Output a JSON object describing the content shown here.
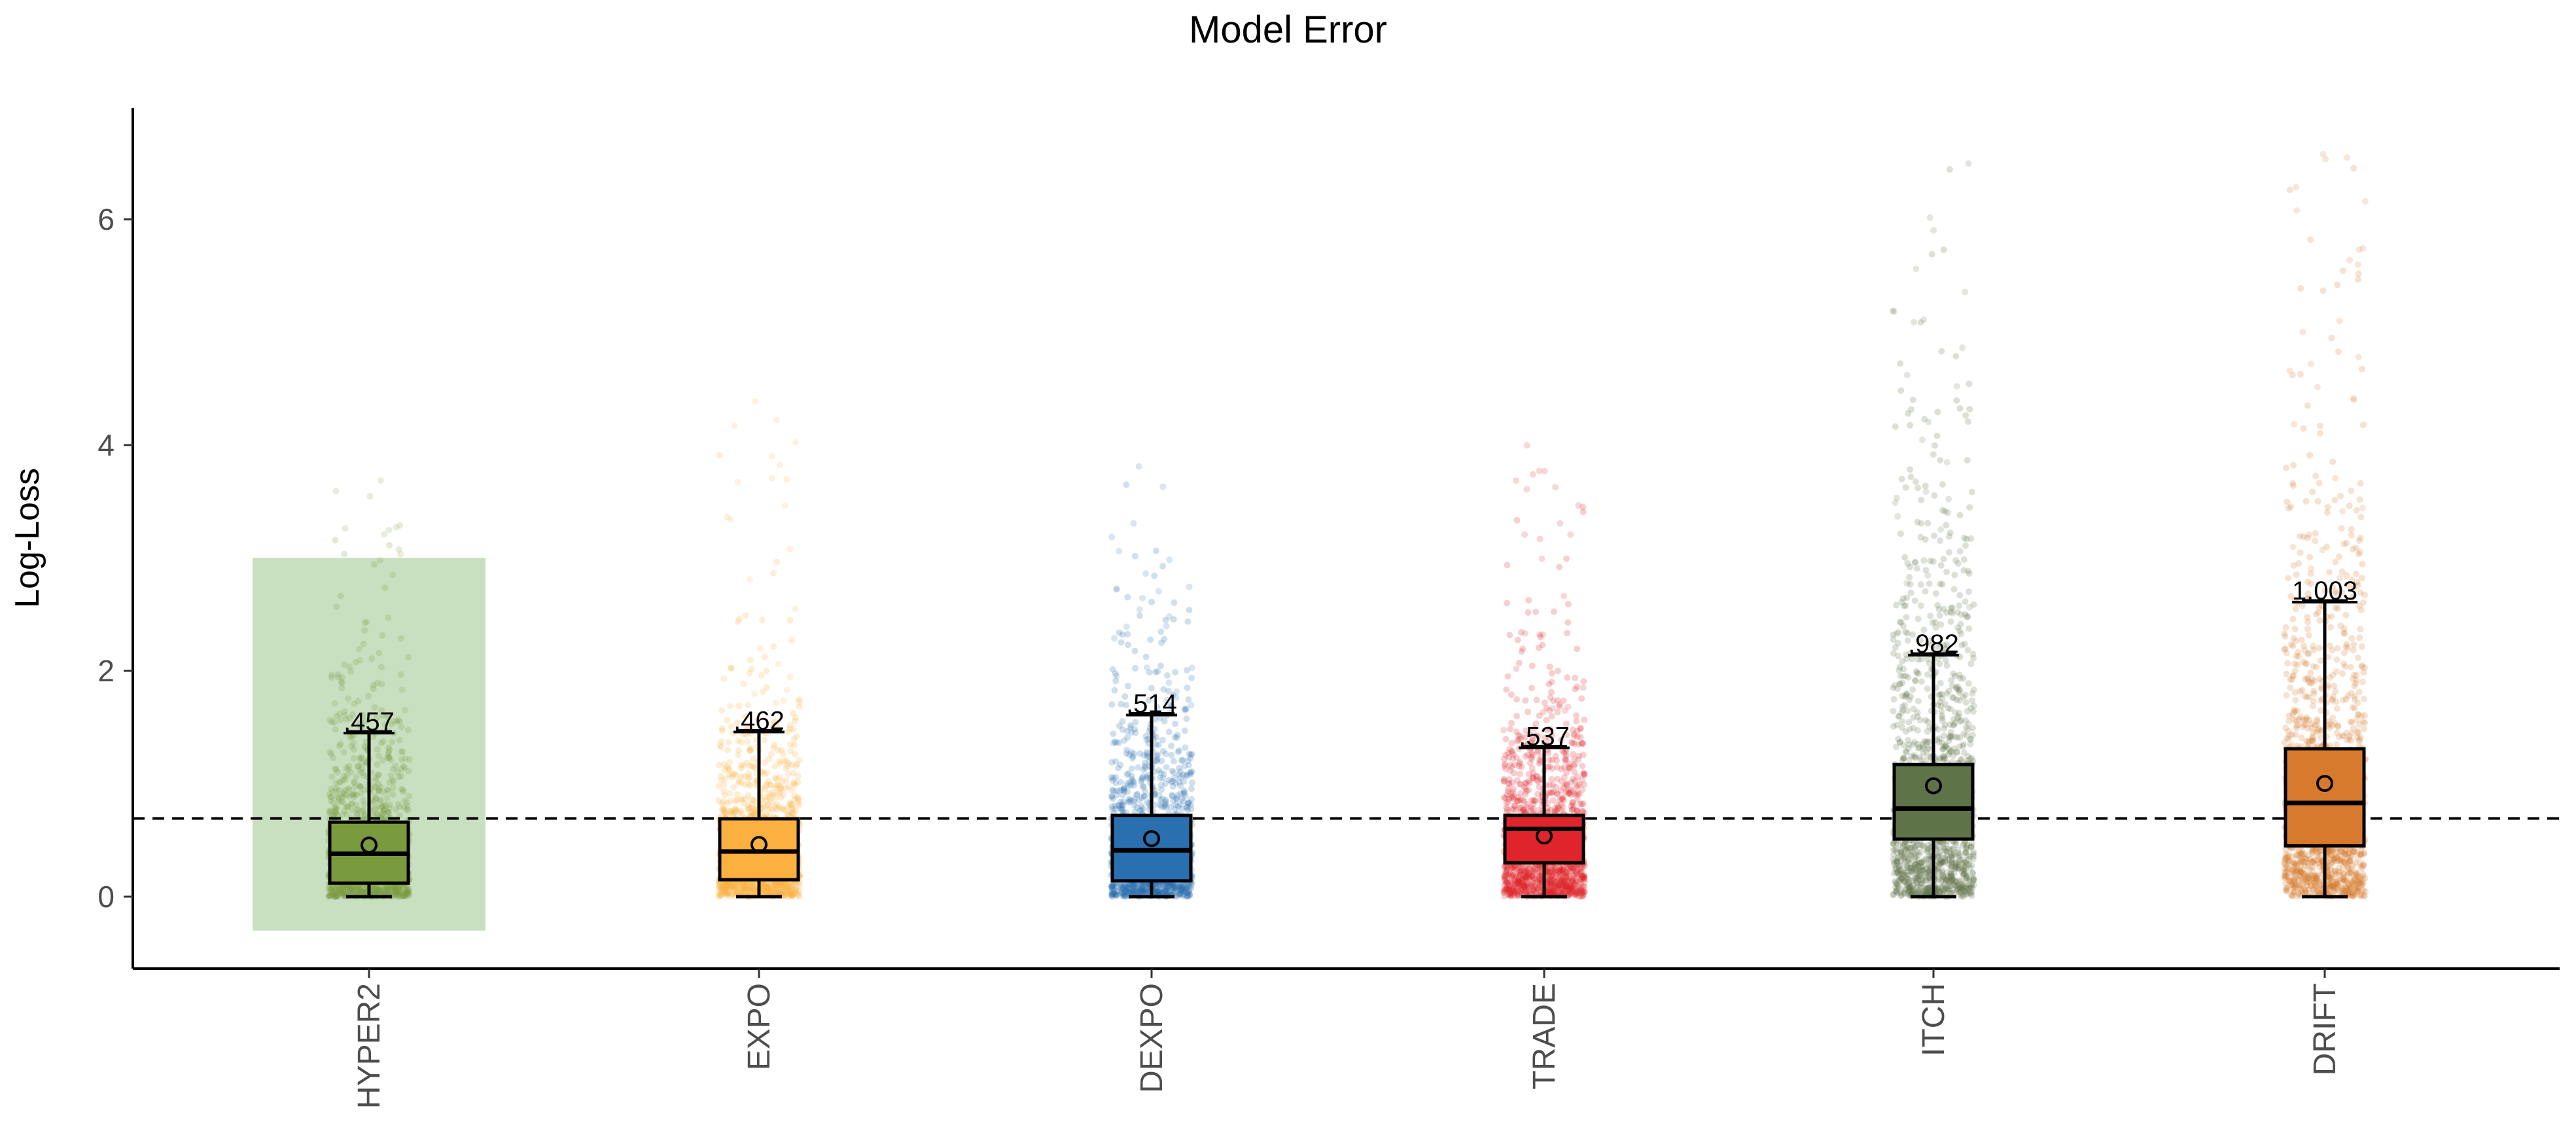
{
  "chart_data": {
    "type": "box",
    "title": "Model Error",
    "xlabel": "",
    "ylabel": "Log-Loss",
    "ylim": [
      -0.65,
      7.0
    ],
    "yticks": [
      0,
      2,
      4,
      6
    ],
    "reference_line": 0.693,
    "highlight": {
      "category": "HYPER2",
      "range": [
        -0.3,
        3.0
      ],
      "color": "#c8dfc0"
    },
    "categories": [
      "HYPER2",
      "EXPO",
      "DEXPO",
      "TRADE",
      "ITCH",
      "DRIFT"
    ],
    "series": [
      {
        "name": "HYPER2",
        "color": "#7a9a3e",
        "q1": 0.12,
        "median": 0.38,
        "q3": 0.66,
        "whisker_low": 0.0,
        "whisker_high": 1.46,
        "mean": 0.457,
        "mean_label": ".457",
        "max": 4.05
      },
      {
        "name": "EXPO",
        "color": "#fbb040",
        "q1": 0.15,
        "median": 0.4,
        "q3": 0.69,
        "whisker_low": 0.0,
        "whisker_high": 1.47,
        "mean": 0.462,
        "mean_label": ".462",
        "max": 4.42
      },
      {
        "name": "DEXPO",
        "color": "#2a6faf",
        "q1": 0.14,
        "median": 0.41,
        "q3": 0.72,
        "whisker_low": 0.0,
        "whisker_high": 1.62,
        "mean": 0.514,
        "mean_label": ".514",
        "max": 4.13
      },
      {
        "name": "TRADE",
        "color": "#e0242b",
        "q1": 0.3,
        "median": 0.6,
        "q3": 0.72,
        "whisker_low": 0.0,
        "whisker_high": 1.33,
        "mean": 0.537,
        "mean_label": ".537",
        "max": 4.09
      },
      {
        "name": "ITCH",
        "color": "#5f7349",
        "q1": 0.51,
        "median": 0.78,
        "q3": 1.17,
        "whisker_low": 0.0,
        "whisker_high": 2.15,
        "mean": 0.982,
        "mean_label": ".982",
        "max": 6.5
      },
      {
        "name": "DRIFT",
        "color": "#d87a2e",
        "q1": 0.45,
        "median": 0.83,
        "q3": 1.31,
        "whisker_low": 0.0,
        "whisker_high": 2.62,
        "mean": 1.003,
        "mean_label": "1.003",
        "max": 6.65
      }
    ]
  }
}
